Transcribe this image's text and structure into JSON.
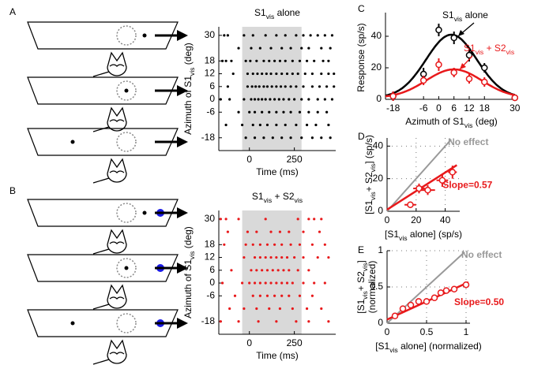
{
  "chart_data": [
    {
      "type": "raster",
      "panel": "A",
      "title": [
        "S1",
        {
          "sub": "vis"
        },
        "  alone"
      ],
      "xlabel": "Time (ms)",
      "ylabel": [
        "Azimuth of S1",
        {
          "sub": "vis"
        },
        " (deg)"
      ],
      "xlim": [
        -170,
        480
      ],
      "xticks": [
        0,
        250
      ],
      "ylim": [
        -24,
        34
      ],
      "yticks": [
        30,
        18,
        12,
        6,
        0,
        -6,
        -18
      ],
      "shade": [
        -40,
        290
      ],
      "color": "#000000",
      "rows": [
        {
          "y": 30,
          "times": [
            -140,
            -120,
            -30,
            20,
            90,
            150,
            200,
            260,
            300,
            340,
            380,
            420,
            460
          ]
        },
        {
          "y": 24,
          "times": [
            -60,
            10,
            60,
            120,
            180,
            230,
            290,
            330,
            400,
            450
          ]
        },
        {
          "y": 18,
          "times": [
            -150,
            -130,
            -100,
            -20,
            5,
            40,
            80,
            110,
            140,
            170,
            200,
            240,
            280,
            320,
            360,
            410,
            440
          ]
        },
        {
          "y": 12,
          "times": [
            -90,
            -10,
            20,
            45,
            70,
            95,
            120,
            150,
            180,
            210,
            240,
            270,
            310,
            350,
            400,
            440,
            470
          ]
        },
        {
          "y": 6,
          "times": [
            -120,
            -10,
            15,
            35,
            55,
            80,
            100,
            125,
            150,
            175,
            200,
            230,
            260,
            300,
            350,
            390,
            430,
            470
          ]
        },
        {
          "y": 0,
          "times": [
            -160,
            -110,
            -30,
            10,
            30,
            50,
            70,
            90,
            115,
            140,
            165,
            190,
            220,
            250,
            290,
            330,
            380,
            420,
            460
          ]
        },
        {
          "y": -6,
          "times": [
            -60,
            0,
            30,
            70,
            110,
            150,
            190,
            230,
            280,
            330,
            380,
            430
          ]
        },
        {
          "y": -12,
          "times": [
            -130,
            -40,
            20,
            60,
            100,
            150,
            200,
            260,
            320,
            370,
            440
          ]
        },
        {
          "y": -18,
          "times": [
            -20,
            30,
            80,
            130,
            180,
            230,
            290,
            350,
            400,
            450
          ]
        }
      ]
    },
    {
      "type": "raster",
      "panel": "B",
      "title": [
        "S1",
        {
          "sub": "vis"
        },
        " + S2",
        {
          "sub": "vis"
        }
      ],
      "xlabel": "Time (ms)",
      "ylabel": [
        "Azimuth of S1",
        {
          "sub": "vis"
        },
        " (deg)"
      ],
      "xlim": [
        -170,
        480
      ],
      "xticks": [
        0,
        250
      ],
      "ylim": [
        -24,
        34
      ],
      "yticks": [
        30,
        18,
        12,
        6,
        0,
        -6,
        -18
      ],
      "shade": [
        -40,
        290
      ],
      "color": "#e8191b",
      "rows": [
        {
          "y": 30,
          "times": [
            -160,
            -130,
            -60,
            90,
            270,
            330,
            360,
            400
          ]
        },
        {
          "y": 24,
          "times": [
            -120,
            -10,
            40,
            120,
            170,
            220,
            300,
            390
          ]
        },
        {
          "y": 18,
          "times": [
            -140,
            -20,
            20,
            60,
            100,
            140,
            180,
            230,
            280,
            350,
            420
          ]
        },
        {
          "y": 12,
          "times": [
            -30,
            30,
            60,
            90,
            120,
            150,
            180,
            210,
            250,
            300,
            380,
            440
          ]
        },
        {
          "y": 6,
          "times": [
            -100,
            10,
            40,
            70,
            100,
            130,
            160,
            190,
            220,
            270,
            330
          ]
        },
        {
          "y": 0,
          "times": [
            -150,
            -40,
            0,
            30,
            60,
            90,
            120,
            150,
            180,
            210,
            240,
            300,
            360,
            420
          ]
        },
        {
          "y": -6,
          "times": [
            -80,
            20,
            60,
            100,
            140,
            180,
            220,
            280,
            350
          ]
        },
        {
          "y": -12,
          "times": [
            -110,
            -30,
            40,
            110,
            170,
            240,
            320,
            400
          ]
        },
        {
          "y": -18,
          "times": [
            -160,
            -60,
            50,
            150,
            260,
            330,
            440
          ]
        }
      ]
    },
    {
      "type": "line",
      "panel": "C",
      "xlabel": [
        "Azimuth of S1",
        {
          "sub": "vis"
        },
        " (deg)"
      ],
      "ylabel": "Response (sp/s)",
      "x": [
        -18,
        -6,
        0,
        6,
        12,
        18,
        30
      ],
      "xlim": [
        -21,
        31
      ],
      "xticks": [
        -18,
        -6,
        0,
        6,
        12,
        18,
        30
      ],
      "ylim": [
        0,
        55
      ],
      "yticks": [
        0,
        20,
        40
      ],
      "series": [
        {
          "name": [
            "S1",
            {
              "sub": "vis"
            },
            " alone"
          ],
          "color": "#000000",
          "values": [
            2,
            16,
            44,
            39,
            28,
            20,
            1
          ],
          "errors": [
            3,
            4,
            4,
            4,
            4,
            3,
            2
          ],
          "fit": {
            "amp": 40,
            "mu": 5,
            "sigma": 10,
            "base": 1
          }
        },
        {
          "name": [
            "S1",
            {
              "sub": "vis"
            },
            " + S2",
            {
              "sub": "vis"
            }
          ],
          "color": "#e8191b",
          "values": [
            2,
            12,
            22,
            17,
            13,
            11,
            1
          ],
          "errors": [
            3,
            3,
            4,
            3,
            3,
            3,
            2
          ],
          "fit": {
            "amp": 18,
            "mu": 6,
            "sigma": 11,
            "base": 1
          }
        }
      ]
    },
    {
      "type": "scatter",
      "panel": "D",
      "xlabel": [
        "[S1",
        {
          "sub": "vis"
        },
        " alone] (sp/s)"
      ],
      "ylabel": [
        "[S1",
        {
          "sub": "vis"
        },
        "+ S2",
        {
          "sub": "vis"
        },
        "] (sp/s)"
      ],
      "xlim": [
        0,
        50
      ],
      "xticks": [
        0,
        20,
        40
      ],
      "ylim": [
        0,
        45
      ],
      "yticks": [
        0,
        20,
        40
      ],
      "grid": true,
      "color": "#e8191b",
      "x": [
        16,
        22,
        28,
        38,
        45
      ],
      "values": [
        4,
        14,
        13,
        19,
        24
      ],
      "xerr": [
        4,
        4,
        5,
        4,
        3
      ],
      "yerr": [
        2,
        3,
        3,
        4,
        4
      ],
      "fit": {
        "slope": 0.57,
        "intercept": 1,
        "label": "Slope=0.57"
      },
      "reference": {
        "label": "No effect",
        "color": "#999999"
      }
    },
    {
      "type": "scatter",
      "panel": "E",
      "xlabel": [
        "[S1",
        {
          "sub": "vis"
        },
        " alone] (normalized)"
      ],
      "ylabel": [
        "[S1",
        {
          "sub": "vis"
        },
        "+ S2",
        {
          "sub": "vis"
        },
        "]"
      ],
      "ylabel2": "(normalized)",
      "xlim": [
        0,
        1.05
      ],
      "xticks": [
        0,
        0.5,
        1
      ],
      "ylim": [
        0,
        1
      ],
      "yticks": [
        0,
        0.5,
        1
      ],
      "grid": true,
      "color": "#e8191b",
      "x": [
        0.1,
        0.2,
        0.3,
        0.4,
        0.5,
        0.6,
        0.68,
        0.75,
        0.85,
        1.0
      ],
      "values": [
        0.1,
        0.2,
        0.25,
        0.3,
        0.3,
        0.35,
        0.42,
        0.45,
        0.47,
        0.53
      ],
      "xerr": [
        0.03,
        0.03,
        0.03,
        0.03,
        0.03,
        0.03,
        0.03,
        0.03,
        0.03,
        0.03
      ],
      "yerr": [
        0.04,
        0.04,
        0.04,
        0.04,
        0.04,
        0.04,
        0.04,
        0.04,
        0.04,
        0.04
      ],
      "fit": {
        "slope": 0.5,
        "intercept": 0.05,
        "label": "Slope=0.50"
      },
      "reference": {
        "label": "No effect",
        "color": "#999999"
      }
    }
  ]
}
